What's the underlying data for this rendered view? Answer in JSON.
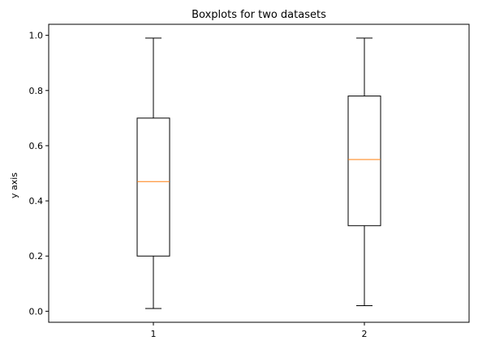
{
  "chart_data": {
    "type": "boxplot",
    "title": "Boxplots for two datasets",
    "xlabel": "",
    "ylabel": "y axis",
    "x_tick_labels": [
      "1",
      "2"
    ],
    "y_ticks": [
      "0.0",
      "0.2",
      "0.4",
      "0.6",
      "0.8",
      "1.0"
    ],
    "ylim": [
      -0.04,
      1.04
    ],
    "grid": false,
    "boxes": [
      {
        "category": "1",
        "whisker_low": 0.01,
        "q1": 0.2,
        "median": 0.47,
        "q3": 0.7,
        "whisker_high": 0.99
      },
      {
        "category": "2",
        "whisker_low": 0.02,
        "q1": 0.31,
        "median": 0.55,
        "q3": 0.78,
        "whisker_high": 0.99
      }
    ],
    "colors": {
      "box": "#000000",
      "median": "#ff7f0e",
      "background": "#ffffff"
    }
  }
}
